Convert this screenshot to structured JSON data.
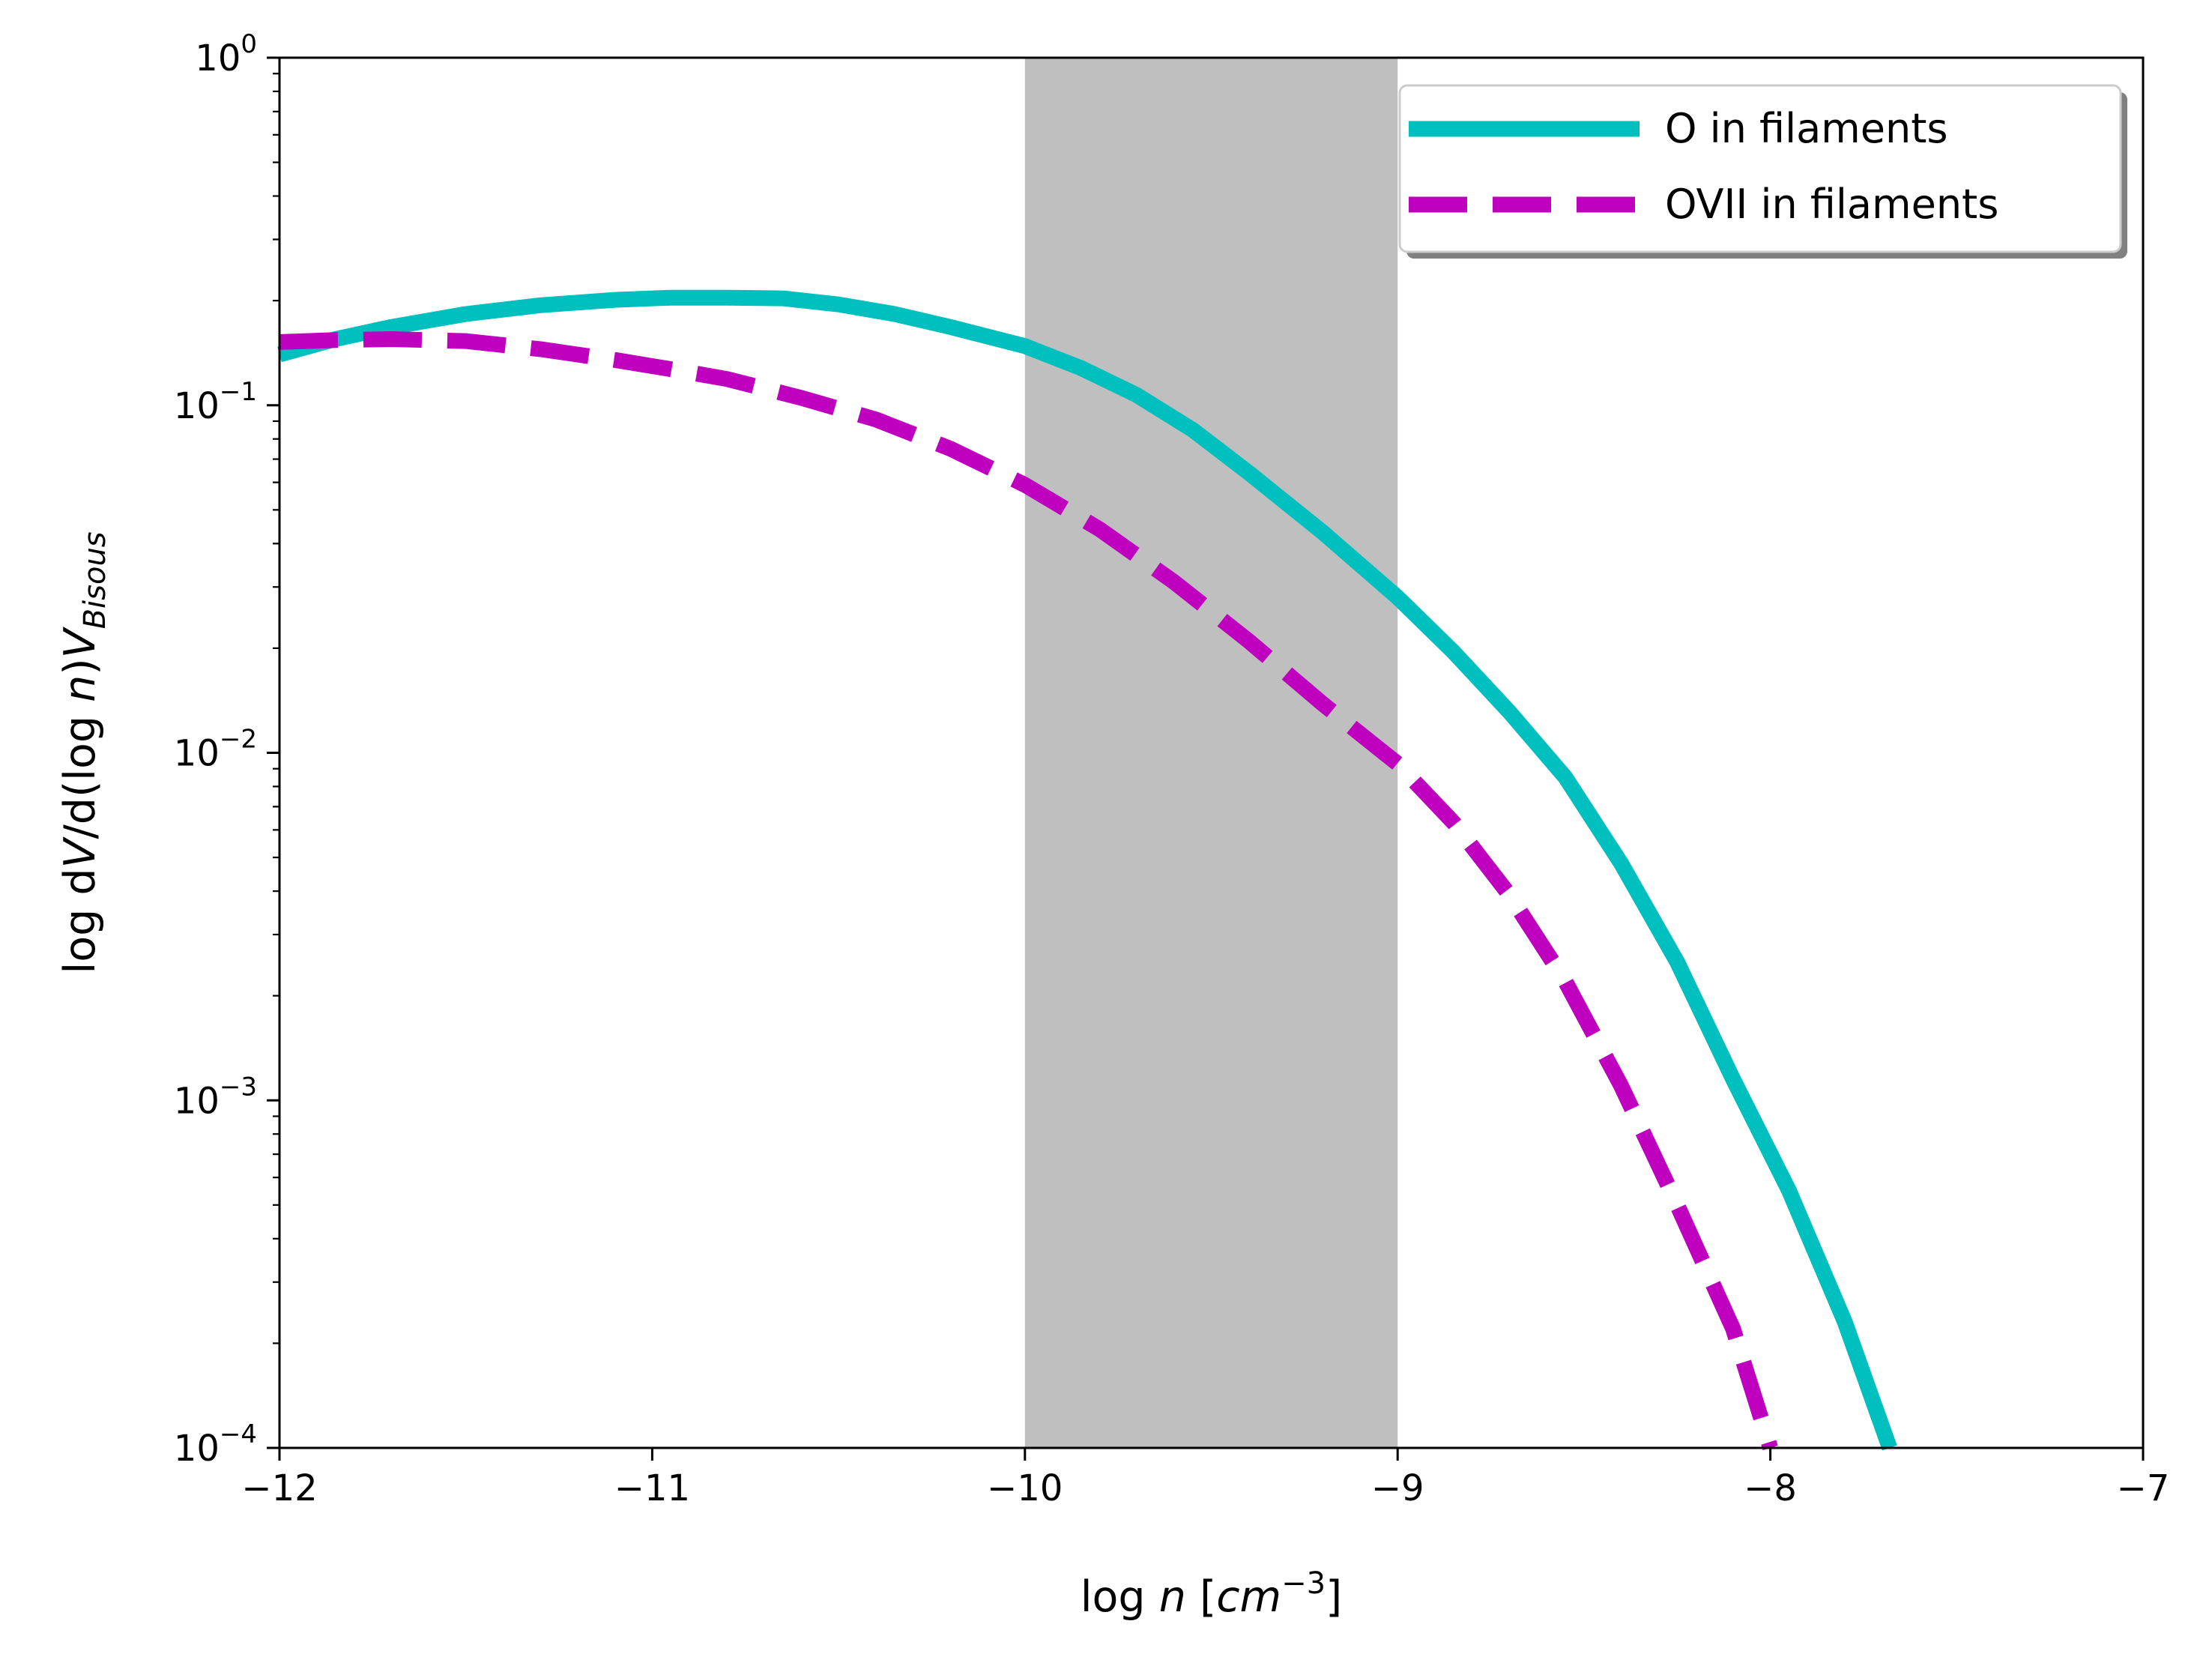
{
  "chart_data": {
    "type": "line",
    "xlabel": {
      "prefix": "log ",
      "italic": "n",
      "mid": " [",
      "unit": "cm",
      "sup": "−3",
      "suffix": "]"
    },
    "ylabel": {
      "prefix": "log d",
      "italic1": "V",
      "mid1": "/d(log ",
      "italic2": "n",
      "mid2": ")",
      "italic3": "V",
      "sub": "Bisous"
    },
    "xlim": [
      -12,
      -7
    ],
    "ylim": [
      0.0001,
      1
    ],
    "yscale": "log",
    "grid": false,
    "legend_position": "upper right",
    "x_ticks": [
      {
        "value": -12,
        "label": "−12"
      },
      {
        "value": -11,
        "label": "−11"
      },
      {
        "value": -10,
        "label": "−10"
      },
      {
        "value": -9,
        "label": "−9"
      },
      {
        "value": -8,
        "label": "−8"
      },
      {
        "value": -7,
        "label": "−7"
      }
    ],
    "y_ticks": [
      {
        "value": 1,
        "base": "10",
        "exp": "0"
      },
      {
        "value": 0.1,
        "base": "10",
        "exp": "−1"
      },
      {
        "value": 0.01,
        "base": "10",
        "exp": "−2"
      },
      {
        "value": 0.001,
        "base": "10",
        "exp": "−3"
      },
      {
        "value": 0.0001,
        "base": "10",
        "exp": "−4"
      }
    ],
    "shaded_region": {
      "x": [
        -10,
        -9
      ],
      "color": "#bfbfbf"
    },
    "series": [
      {
        "name": "O in filaments",
        "color": "#00bfbf",
        "style": "solid",
        "points": [
          [
            -12.0,
            0.14
          ],
          [
            -11.85,
            0.155
          ],
          [
            -11.7,
            0.168
          ],
          [
            -11.5,
            0.183
          ],
          [
            -11.3,
            0.194
          ],
          [
            -11.1,
            0.201
          ],
          [
            -10.95,
            0.204
          ],
          [
            -10.8,
            0.204
          ],
          [
            -10.65,
            0.203
          ],
          [
            -10.5,
            0.195
          ],
          [
            -10.35,
            0.183
          ],
          [
            -10.2,
            0.168
          ],
          [
            -10.0,
            0.148
          ],
          [
            -9.85,
            0.128
          ],
          [
            -9.7,
            0.107
          ],
          [
            -9.55,
            0.085
          ],
          [
            -9.4,
            0.064
          ],
          [
            -9.2,
            0.043
          ],
          [
            -9.0,
            0.028
          ],
          [
            -8.85,
            0.0195
          ],
          [
            -8.7,
            0.0131
          ],
          [
            -8.55,
            0.0085
          ],
          [
            -8.4,
            0.0048
          ],
          [
            -8.25,
            0.0025
          ],
          [
            -8.1,
            0.00115
          ],
          [
            -7.95,
            0.00055
          ],
          [
            -7.8,
            0.00023
          ],
          [
            -7.68,
            0.0001
          ]
        ]
      },
      {
        "name": "OVII in filaments",
        "color": "#bf00bf",
        "style": "dashed",
        "points": [
          [
            -12.0,
            0.152
          ],
          [
            -11.85,
            0.154
          ],
          [
            -11.7,
            0.155
          ],
          [
            -11.5,
            0.153
          ],
          [
            -11.3,
            0.145
          ],
          [
            -11.1,
            0.135
          ],
          [
            -10.95,
            0.127
          ],
          [
            -10.8,
            0.119
          ],
          [
            -10.6,
            0.105
          ],
          [
            -10.4,
            0.091
          ],
          [
            -10.2,
            0.075
          ],
          [
            -10.0,
            0.059
          ],
          [
            -9.8,
            0.044
          ],
          [
            -9.6,
            0.031
          ],
          [
            -9.4,
            0.021
          ],
          [
            -9.2,
            0.0138
          ],
          [
            -9.0,
            0.0093
          ],
          [
            -8.85,
            0.0063
          ],
          [
            -8.7,
            0.0039
          ],
          [
            -8.55,
            0.0022
          ],
          [
            -8.4,
            0.0011
          ],
          [
            -8.25,
            0.0005
          ],
          [
            -8.1,
            0.00022
          ],
          [
            -8.0,
            0.0001
          ]
        ]
      }
    ]
  }
}
